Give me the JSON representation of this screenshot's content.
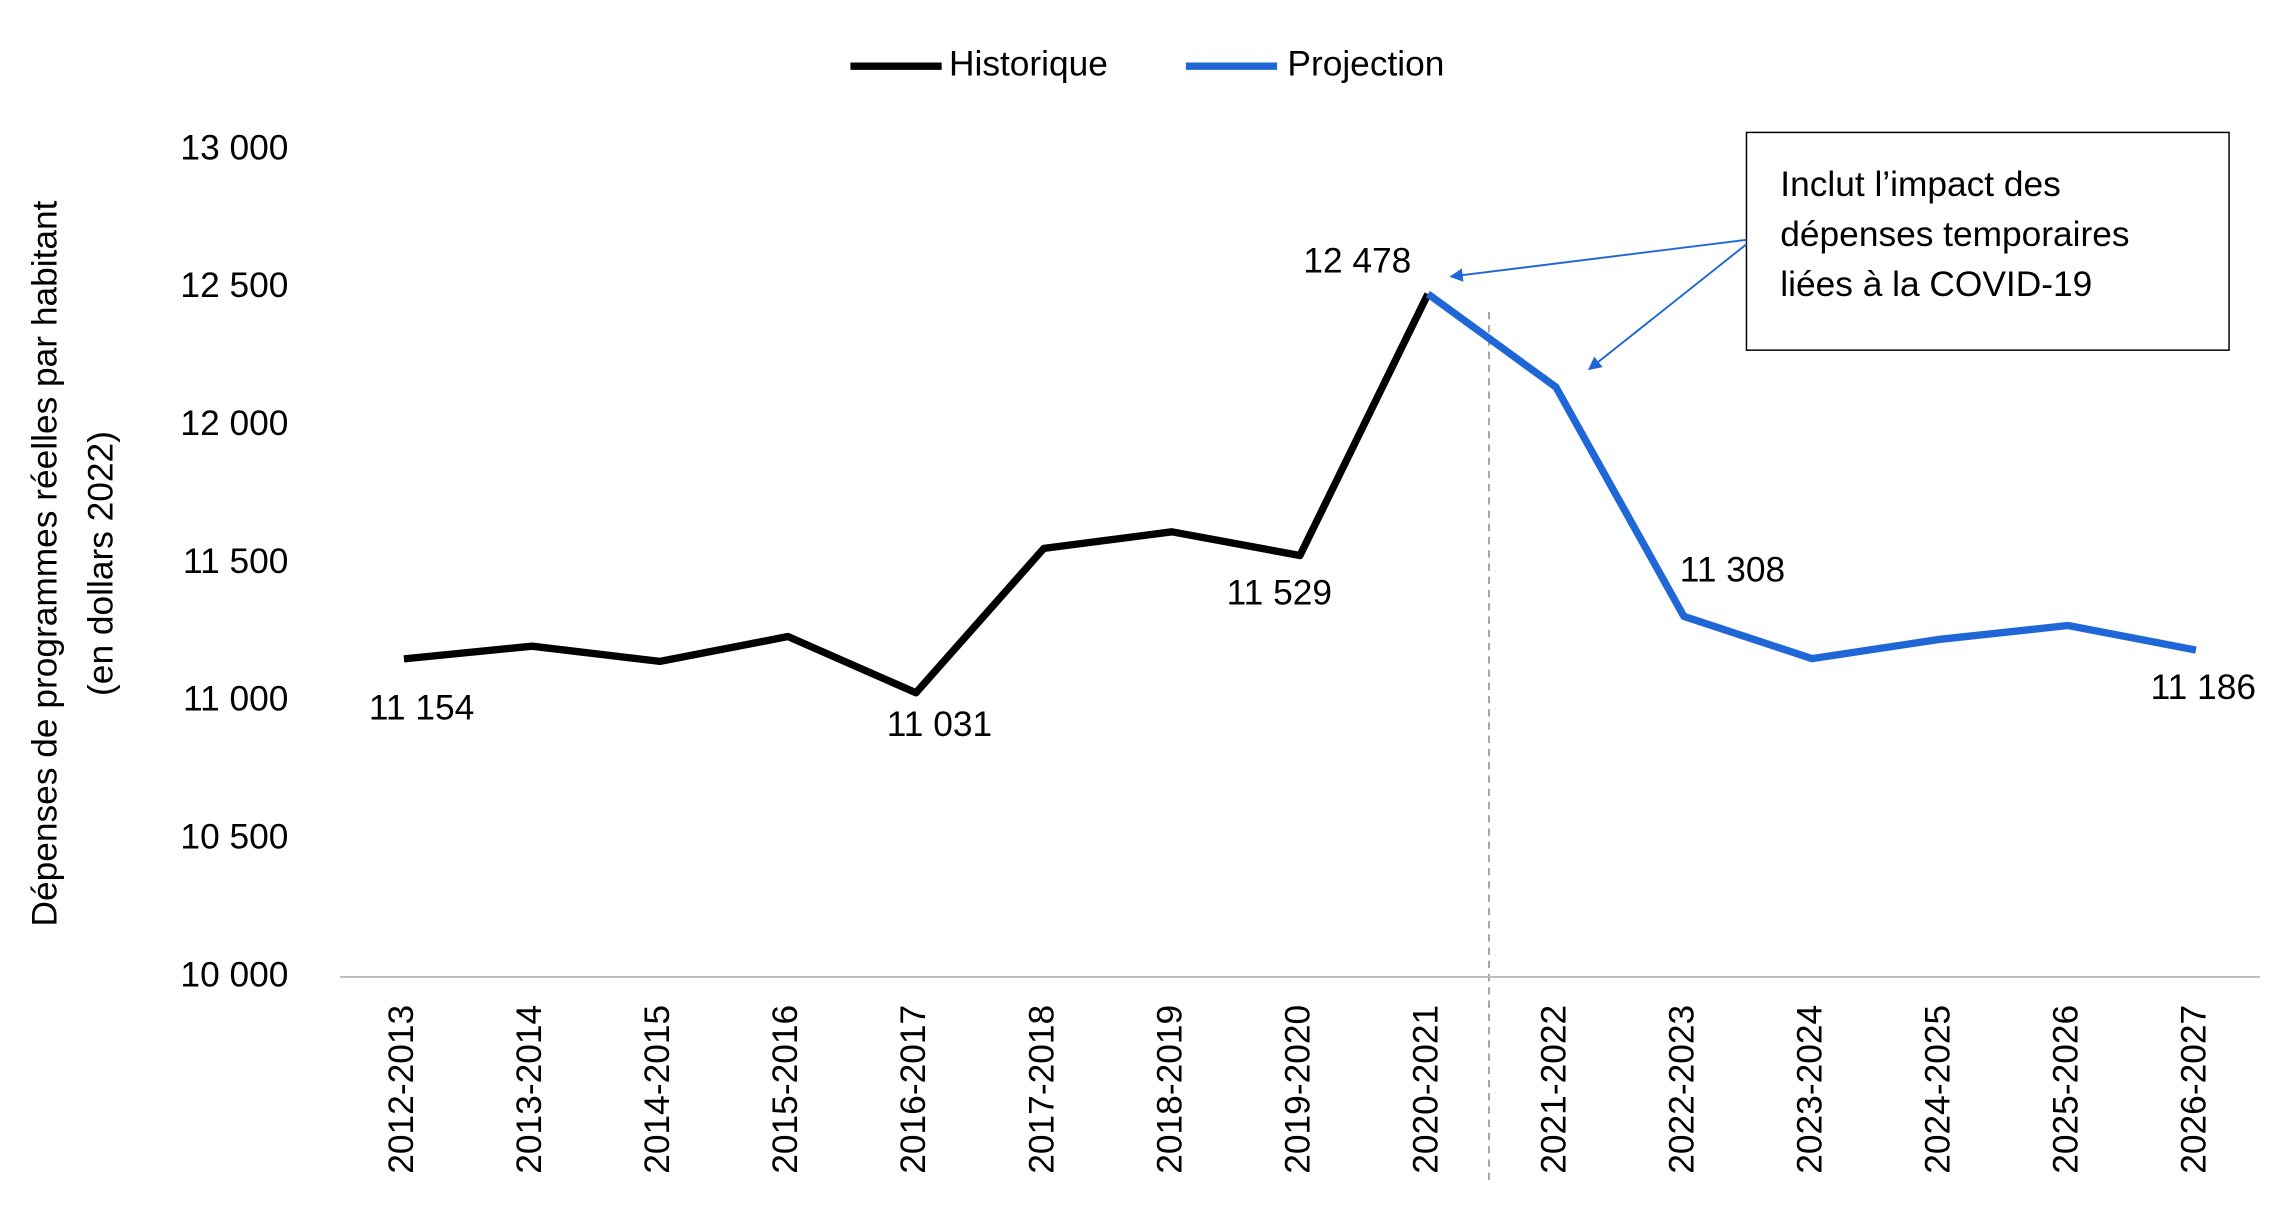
{
  "chart_data": {
    "type": "line",
    "y_label": [
      "Dépenses de programmes réelles par habitant",
      "(en dollars 2022)"
    ],
    "categories": [
      "2012-2013",
      "2013-2014",
      "2014-2015",
      "2015-2016",
      "2016-2017",
      "2017-2018",
      "2018-2019",
      "2019-2020",
      "2020-2021",
      "2021-2022",
      "2022-2023",
      "2023-2024",
      "2024-2025",
      "2025-2026",
      "2026-2027"
    ],
    "series": [
      {
        "name": "Historique",
        "color": "#000000",
        "values": [
          11154,
          11200,
          11145,
          11235,
          11031,
          11555,
          11615,
          11529,
          12478,
          null,
          null,
          null,
          null,
          null,
          null
        ],
        "value_labels": [
          "11 154",
          null,
          null,
          null,
          "11 031",
          null,
          null,
          "11 529",
          "12 478",
          null,
          null,
          null,
          null,
          null,
          null
        ]
      },
      {
        "name": "Projection",
        "color": "#1f66d6",
        "values": [
          null,
          null,
          null,
          null,
          null,
          null,
          null,
          null,
          12478,
          12140,
          11308,
          11155,
          11225,
          11275,
          11186
        ],
        "value_labels": [
          null,
          null,
          null,
          null,
          null,
          null,
          null,
          null,
          null,
          null,
          "11 308",
          null,
          null,
          null,
          "11 186"
        ]
      }
    ],
    "ylim": [
      10000,
      13000
    ],
    "yticks": [
      {
        "value": 10000,
        "label": "10 000"
      },
      {
        "value": 10500,
        "label": "10 500"
      },
      {
        "value": 11000,
        "label": "11 000"
      },
      {
        "value": 11500,
        "label": "11 500"
      },
      {
        "value": 12000,
        "label": "12 000"
      },
      {
        "value": 12500,
        "label": "12 500"
      },
      {
        "value": 13000,
        "label": "13 000"
      }
    ],
    "annotation": [
      "Inclut l’impact des",
      "dépenses temporaires",
      "liées à la COVID-19"
    ],
    "legend": "top"
  }
}
